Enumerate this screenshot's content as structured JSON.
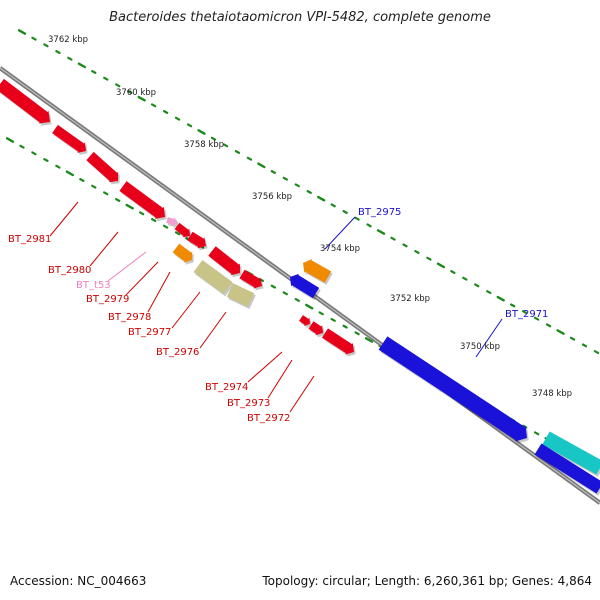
{
  "title": "Bacteroides thetaiotaomicron VPI-5482, complete genome",
  "footer": {
    "accession": "Accession: NC_004663",
    "summary": "Topology: circular; Length: 6,260,361 bp; Genes: 4,864"
  },
  "colors": {
    "red_gene": "#e8001a",
    "blue_gene": "#1a12d8",
    "orange_gene": "#f08a00",
    "olive_gene": "#c8c488",
    "cyan_gene": "#19c6c6",
    "pink_gene": "#f0a0d0",
    "backbone": "#7a7a7a",
    "tick": "#1a8a1a",
    "red_label": "#d00000",
    "blue_label": "#1a12c8",
    "pink_label": "#f080c0"
  },
  "scale_labels": [
    "3762 kbp",
    "3760 kbp",
    "3758 kbp",
    "3756 kbp",
    "3754 kbp",
    "3752 kbp",
    "3750 kbp",
    "3748 kbp"
  ],
  "gene_labels": [
    {
      "text": "BT_2981",
      "color": "red"
    },
    {
      "text": "BT_2980",
      "color": "red"
    },
    {
      "text": "BT_t53",
      "color": "pink"
    },
    {
      "text": "BT_2979",
      "color": "red"
    },
    {
      "text": "BT_2978",
      "color": "red"
    },
    {
      "text": "BT_2977",
      "color": "red"
    },
    {
      "text": "BT_2976",
      "color": "red"
    },
    {
      "text": "BT_2974",
      "color": "red"
    },
    {
      "text": "BT_2973",
      "color": "red"
    },
    {
      "text": "BT_2972",
      "color": "red"
    },
    {
      "text": "BT_2975",
      "color": "blue"
    },
    {
      "text": "BT_2971",
      "color": "blue"
    }
  ]
}
